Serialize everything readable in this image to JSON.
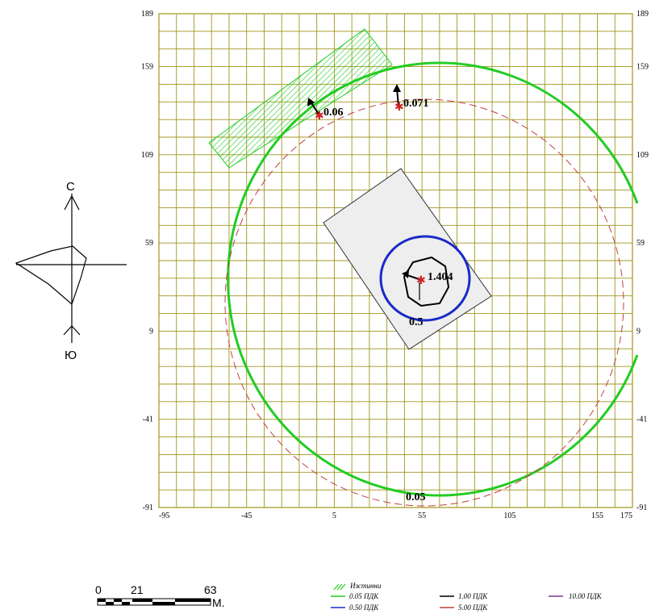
{
  "chart_data": {
    "type": "contour-map",
    "x_ticks": [
      "-95",
      "-45",
      "5",
      "55",
      "105",
      "155",
      "175"
    ],
    "y_ticks": [
      "189",
      "159",
      "109",
      "59",
      "9",
      "-41",
      "-91"
    ],
    "right_y_ticks": [
      "189",
      "159",
      "109",
      "59",
      "9",
      "-41",
      "-91"
    ],
    "xlim": [
      -95,
      175
    ],
    "ylim": [
      -91,
      189
    ],
    "grid": true,
    "sources": [
      {
        "name": "source-1",
        "x": 53,
        "y": 30,
        "value": "1.404"
      },
      {
        "name": "source-2",
        "x": 41,
        "y": 143,
        "value": "0.071"
      },
      {
        "name": "source-3",
        "x": -2,
        "y": 139,
        "value": "0.06"
      }
    ],
    "contour_labels": [
      {
        "text": "0.5",
        "x": 50,
        "y": 3
      },
      {
        "text": "0.05",
        "x": 55,
        "y": -83
      }
    ],
    "contours": [
      {
        "level": "0.05 ПДК",
        "color": "#22cc22",
        "center": [
          55,
          34
        ],
        "radius": 124
      },
      {
        "level": "5.00 ПДК",
        "color": "#c04040",
        "dashed": true,
        "center": [
          55,
          31
        ],
        "radius": 112
      },
      {
        "level": "0.50 ПДК",
        "color": "#1a2bc8",
        "center": [
          56,
          31
        ],
        "radius": 28
      },
      {
        "level": "1.00 ПДК",
        "color": "#000000",
        "center": [
          55,
          31
        ],
        "radius": 14
      }
    ],
    "colors": {
      "grid": "#a0951c",
      "hatch": "#22cc22",
      "source": "#cc2222",
      "rect_fill": "#eeeeee"
    }
  },
  "compass": {
    "north": "С",
    "south": "Ю"
  },
  "scale_bar": {
    "labels": [
      "0",
      "21",
      "63"
    ],
    "unit": "М."
  },
  "legend": {
    "hatch_label": "Изстинни",
    "items": [
      {
        "label": "0.05 ПДК",
        "color": "#22cc22"
      },
      {
        "label": "0.50 ПДК",
        "color": "#1a2bc8"
      },
      {
        "label": "1.00 ПДК",
        "color": "#000000"
      },
      {
        "label": "5.00 ПДК",
        "color": "#c04040"
      },
      {
        "label": "10.00 ПДК",
        "color": "#7a3a8a"
      }
    ]
  }
}
